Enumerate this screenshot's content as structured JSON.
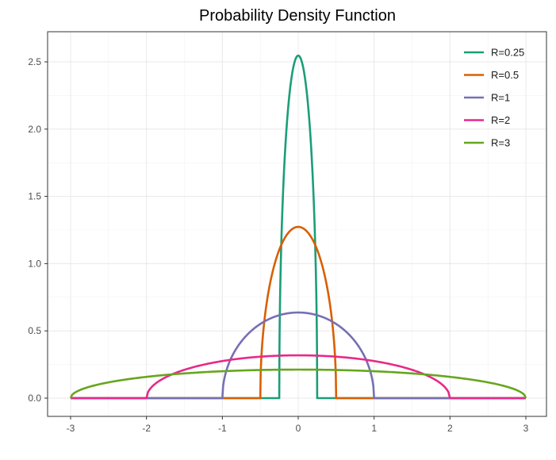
{
  "chart_data": {
    "type": "line",
    "title": "Probability Density Function",
    "xlabel": "",
    "ylabel": "",
    "xlim": [
      -3,
      3
    ],
    "ylim": [
      0,
      2.55
    ],
    "xticks": [
      -3,
      -2,
      -1,
      0,
      1,
      2,
      3
    ],
    "xtick_labels": [
      "-3",
      "-2",
      "-1",
      "0",
      "1",
      "2",
      "3"
    ],
    "yticks": [
      0,
      0.5,
      1,
      1.5,
      2,
      2.5
    ],
    "ytick_labels": [
      "0.0",
      "0.5",
      "1.0",
      "1.5",
      "2.0",
      "2.5"
    ],
    "grid": true,
    "legend_position": "top-right",
    "series": [
      {
        "name": "R=0.25",
        "radius": 0.25,
        "color": "#1b9e77",
        "peak": 2.546
      },
      {
        "name": "R=0.5",
        "radius": 0.5,
        "color": "#d95f02",
        "peak": 1.273
      },
      {
        "name": "R=1",
        "radius": 1,
        "color": "#7570b3",
        "peak": 0.637
      },
      {
        "name": "R=2",
        "radius": 2,
        "color": "#e7298a",
        "peak": 0.318
      },
      {
        "name": "R=3",
        "radius": 3,
        "color": "#66a61e",
        "peak": 0.212
      }
    ]
  }
}
